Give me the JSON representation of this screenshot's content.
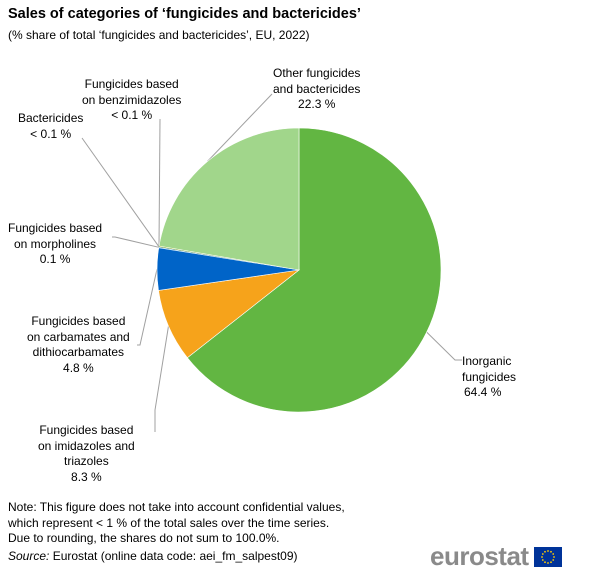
{
  "title": "Sales of categories of ‘fungicides and bactericides’",
  "subtitle": "(% share of total ‘fungicides and bactericides’, EU, 2022)",
  "chart_data": {
    "type": "pie",
    "title": "Sales of categories of ‘fungicides and bactericides’",
    "subtitle": "(% share of total ‘fungicides and bactericides’, EU, 2022)",
    "slices": [
      {
        "label": "Inorganic fungicides",
        "value": 64.4,
        "value_label": "64.4 %",
        "color": "#62b642"
      },
      {
        "label": "Fungicides based on imidazoles and triazoles",
        "value": 8.3,
        "value_label": "8.3 %",
        "color": "#f6a31b"
      },
      {
        "label": "Fungicides based on carbamates and dithiocarbamates",
        "value": 4.8,
        "value_label": "4.8 %",
        "color": "#0064c8"
      },
      {
        "label": "Fungicides based on morpholines",
        "value": 0.1,
        "value_label": "0.1 %",
        "color": "#b5d9f2"
      },
      {
        "label": "Bactericides",
        "value": 0.05,
        "value_label": "< 0.1 %",
        "color": "#2f6f1a"
      },
      {
        "label": "Fungicides based on benzimidazoles",
        "value": 0.05,
        "value_label": "< 0.1 %",
        "color": "#e0e000"
      },
      {
        "label": "Other fungicides and bactericides",
        "value": 22.3,
        "value_label": "22.3 %",
        "color": "#a1d68b"
      }
    ]
  },
  "labels": {
    "inorganic": {
      "lines": [
        "Inorganic",
        "fungicides",
        "64.4 %"
      ]
    },
    "imidazoles": {
      "lines": [
        "Fungicides based",
        "on imidazoles and",
        "triazoles",
        "8.3 %"
      ]
    },
    "carbamates": {
      "lines": [
        "Fungicides based",
        "on carbamates and",
        "dithiocarbamates",
        "4.8 %"
      ]
    },
    "morpholines": {
      "lines": [
        "Fungicides based",
        "on morpholines",
        "0.1 %"
      ]
    },
    "bactericides": {
      "lines": [
        "Bactericides",
        "< 0.1 %"
      ]
    },
    "benzimidazoles": {
      "lines": [
        "Fungicides based",
        "on benzimidazoles",
        "< 0.1 %"
      ]
    },
    "other": {
      "lines": [
        "Other fungicides",
        "and bactericides",
        "22.3 %"
      ]
    }
  },
  "note": {
    "lines": [
      "Note: This figure  does not take into account confidential values,",
      "which represent  < 1 % of the total sales over the time series.",
      "Due to rounding, the shares do not sum to 100.0%."
    ]
  },
  "source": {
    "label": "Source:",
    "text": " Eurostat (online data code: aei_fm_salpest09)"
  },
  "logo": {
    "text": "eurostat",
    "flag_color": "#003399",
    "star_color": "#ffcc00"
  }
}
